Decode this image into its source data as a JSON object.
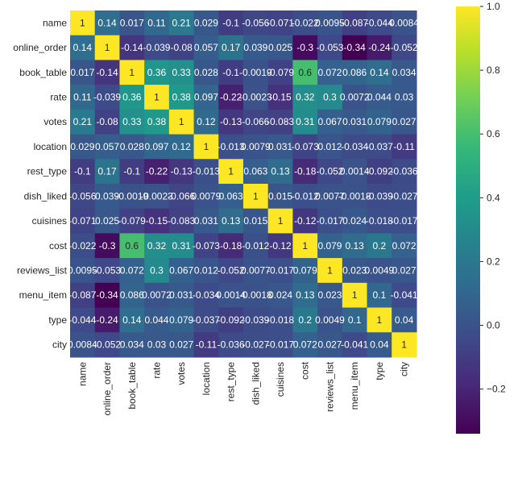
{
  "chart_data": {
    "type": "heatmap",
    "title": "",
    "xlabel": "",
    "ylabel": "",
    "labels": [
      "name",
      "online_order",
      "book_table",
      "rate",
      "votes",
      "location",
      "rest_type",
      "dish_liked",
      "cuisines",
      "cost",
      "reviews_list",
      "menu_item",
      "type",
      "city"
    ],
    "matrix": [
      [
        1,
        0.14,
        0.017,
        0.11,
        0.21,
        0.029,
        -0.1,
        -0.056,
        -0.071,
        -0.022,
        0.0095,
        -0.087,
        -0.044,
        0.0084
      ],
      [
        0.14,
        1,
        -0.14,
        -0.039,
        -0.08,
        0.057,
        0.17,
        0.039,
        0.025,
        -0.3,
        -0.053,
        -0.34,
        -0.24,
        -0.052
      ],
      [
        0.017,
        -0.14,
        1,
        0.36,
        0.33,
        0.028,
        -0.1,
        -0.0019,
        -0.079,
        0.6,
        0.072,
        0.086,
        0.14,
        0.034
      ],
      [
        0.11,
        -0.039,
        0.36,
        1,
        0.38,
        0.097,
        -0.22,
        -0.0023,
        -0.15,
        0.32,
        0.3,
        0.0072,
        0.044,
        0.03
      ],
      [
        0.21,
        -0.08,
        0.33,
        0.38,
        1,
        0.12,
        -0.13,
        -0.066,
        -0.083,
        0.31,
        0.067,
        0.031,
        0.079,
        0.027
      ],
      [
        0.029,
        0.057,
        0.028,
        0.097,
        0.12,
        1,
        -0.013,
        0.0079,
        0.031,
        -0.073,
        0.012,
        -0.034,
        -0.037,
        -0.11
      ],
      [
        -0.1,
        0.17,
        -0.1,
        -0.22,
        -0.13,
        -0.013,
        1,
        0.063,
        0.13,
        -0.18,
        -0.052,
        0.0014,
        -0.092,
        -0.036
      ],
      [
        -0.056,
        0.039,
        -0.0019,
        -0.0023,
        -0.066,
        0.0079,
        0.063,
        1,
        0.015,
        -0.012,
        0.0077,
        -0.0018,
        -0.039,
        -0.027
      ],
      [
        -0.071,
        0.025,
        -0.079,
        -0.15,
        -0.083,
        0.031,
        0.13,
        0.015,
        1,
        -0.12,
        -0.017,
        0.024,
        -0.018,
        -0.017
      ],
      [
        -0.022,
        -0.3,
        0.6,
        0.32,
        0.31,
        -0.073,
        -0.18,
        -0.012,
        -0.12,
        1,
        0.079,
        0.13,
        0.2,
        0.072
      ],
      [
        0.0095,
        -0.053,
        0.072,
        0.3,
        0.067,
        0.012,
        -0.052,
        0.0077,
        -0.017,
        0.079,
        1,
        0.023,
        0.0049,
        0.027
      ],
      [
        -0.087,
        -0.34,
        0.086,
        0.0072,
        0.031,
        -0.034,
        0.0014,
        -0.0018,
        0.024,
        0.13,
        0.023,
        1,
        0.1,
        -0.041
      ],
      [
        -0.044,
        -0.24,
        0.14,
        0.044,
        0.079,
        -0.037,
        -0.092,
        -0.039,
        -0.018,
        0.2,
        0.0049,
        0.1,
        1,
        0.04
      ],
      [
        0.0084,
        -0.052,
        0.034,
        0.03,
        0.027,
        -0.11,
        -0.036,
        -0.027,
        -0.017,
        0.072,
        0.027,
        -0.041,
        0.04,
        1
      ]
    ],
    "annotations": [
      [
        "1",
        "0.14",
        "0.017",
        "0.11",
        "0.21",
        "0.029",
        "-0.1",
        "-0.056",
        "-0.071",
        "-0.022",
        "0.0095",
        "-0.087",
        "-0.044",
        "0.0084"
      ],
      [
        "0.14",
        "1",
        "-0.14",
        "-0.039",
        "-0.08",
        "0.057",
        "0.17",
        "0.039",
        "0.025",
        "-0.3",
        "-0.053",
        "-0.34",
        "-0.24",
        "-0.052"
      ],
      [
        "0.017",
        "-0.14",
        "1",
        "0.36",
        "0.33",
        "0.028",
        "-0.1",
        "-0.0019",
        "-0.079",
        "0.6",
        "0.072",
        "0.086",
        "0.14",
        "0.034"
      ],
      [
        "0.11",
        "-0.039",
        "0.36",
        "1",
        "0.38",
        "0.097",
        "-0.22",
        "-0.0023",
        "-0.15",
        "0.32",
        "0.3",
        "0.0072",
        "0.044",
        "0.03"
      ],
      [
        "0.21",
        "-0.08",
        "0.33",
        "0.38",
        "1",
        "0.12",
        "-0.13",
        "-0.066",
        "-0.083",
        "0.31",
        "0.067",
        "0.031",
        "0.079",
        "0.027"
      ],
      [
        "0.029",
        "0.057",
        "0.028",
        "0.097",
        "0.12",
        "1",
        "-0.013",
        "0.0079",
        "0.031",
        "-0.073",
        "0.012",
        "-0.034",
        "-0.037",
        "-0.11"
      ],
      [
        "-0.1",
        "0.17",
        "-0.1",
        "-0.22",
        "-0.13",
        "-0.013",
        "1",
        "0.063",
        "0.13",
        "-0.18",
        "-0.052",
        "0.0014",
        "-0.092",
        "-0.036"
      ],
      [
        "-0.056",
        "0.039",
        "-0.0019",
        "-0.0023",
        "-0.066",
        "0.0079",
        "0.063",
        "1",
        "0.015",
        "-0.012",
        "0.0077",
        "-0.0018",
        "-0.039",
        "-0.027"
      ],
      [
        "-0.071",
        "0.025",
        "-0.079",
        "-0.15",
        "-0.083",
        "0.031",
        "0.13",
        "0.015",
        "1",
        "-0.12",
        "-0.017",
        "0.024",
        "-0.018",
        "-0.017"
      ],
      [
        "-0.022",
        "-0.3",
        "0.6",
        "0.32",
        "0.31",
        "-0.073",
        "-0.18",
        "-0.012",
        "-0.12",
        "1",
        "0.079",
        "0.13",
        "0.2",
        "0.072"
      ],
      [
        "0.0095",
        "-0.053",
        "0.072",
        "0.3",
        "0.067",
        "0.012",
        "-0.052",
        "0.0077",
        "-0.017",
        "0.079",
        "1",
        "0.023",
        "0.0049",
        "0.027"
      ],
      [
        "-0.087",
        "-0.34",
        "0.086",
        "0.0072",
        "0.031",
        "-0.034",
        "0.0014",
        "-0.0018",
        "0.024",
        "0.13",
        "0.023",
        "1",
        "0.1",
        "-0.041"
      ],
      [
        "-0.044",
        "-0.24",
        "0.14",
        "0.044",
        "0.079",
        "-0.037",
        "-0.092",
        "-0.039",
        "-0.018",
        "0.2",
        "0.0049",
        "0.1",
        "1",
        "0.04"
      ],
      [
        "0.0084",
        "-0.052",
        "0.034",
        "0.03",
        "0.027",
        "-0.11",
        "-0.036",
        "-0.027",
        "-0.017",
        "0.072",
        "0.027",
        "-0.041",
        "0.04",
        "1"
      ]
    ],
    "colormap": "viridis",
    "vmin": -0.34,
    "vmax": 1.0,
    "colorbar_ticks": [
      1.0,
      0.8,
      0.6,
      0.4,
      0.2,
      0.0,
      -0.2
    ],
    "colorbar_tick_labels": [
      "1.0",
      "0.8",
      "0.6",
      "0.4",
      "0.2",
      "0.0",
      "−0.2"
    ]
  }
}
